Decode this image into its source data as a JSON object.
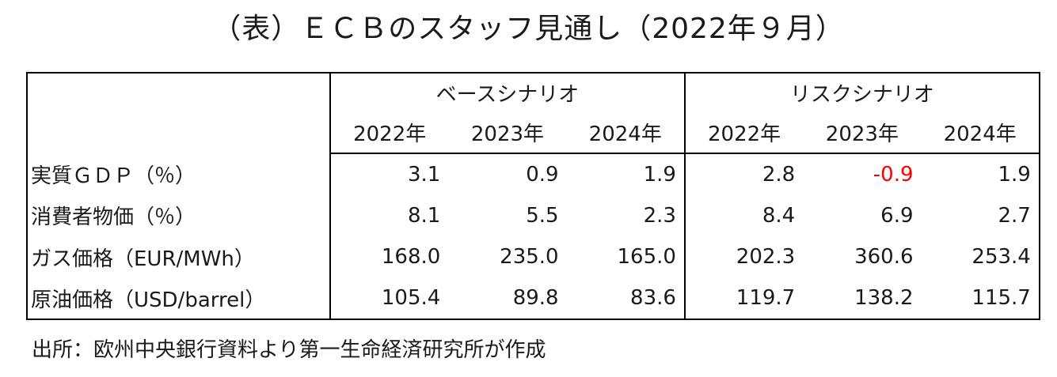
{
  "title": "（表）ＥＣＢのスタッフ見通し（2022年９月）",
  "source": "出所：欧州中央銀行資料より第一生命経済研究所が作成",
  "colors": {
    "negative": "#ff0000",
    "text": "#1a1a1a",
    "border": "#000000"
  },
  "chart_data": {
    "type": "table",
    "title": "（表）ＥＣＢのスタッフ見通し（2022年９月）",
    "scenarios": [
      "ベースシナリオ",
      "リスクシナリオ"
    ],
    "years": [
      "2022年",
      "2023年",
      "2024年",
      "2022年",
      "2023年",
      "2024年"
    ],
    "rows": [
      {
        "label": "実質ＧＤＰ（％）",
        "values": [
          "3.1",
          "0.9",
          "1.9",
          "2.8",
          "-0.9",
          "1.9"
        ]
      },
      {
        "label": "消費者物価（％）",
        "values": [
          "8.1",
          "5.5",
          "2.3",
          "8.4",
          "6.9",
          "2.7"
        ]
      },
      {
        "label": "ガス価格（EUR/MWh）",
        "values": [
          "168.0",
          "235.0",
          "165.0",
          "202.3",
          "360.6",
          "253.4"
        ]
      },
      {
        "label": "原油価格（USD/barrel）",
        "values": [
          "105.4",
          "89.8",
          "83.6",
          "119.7",
          "138.2",
          "115.7"
        ]
      }
    ]
  }
}
